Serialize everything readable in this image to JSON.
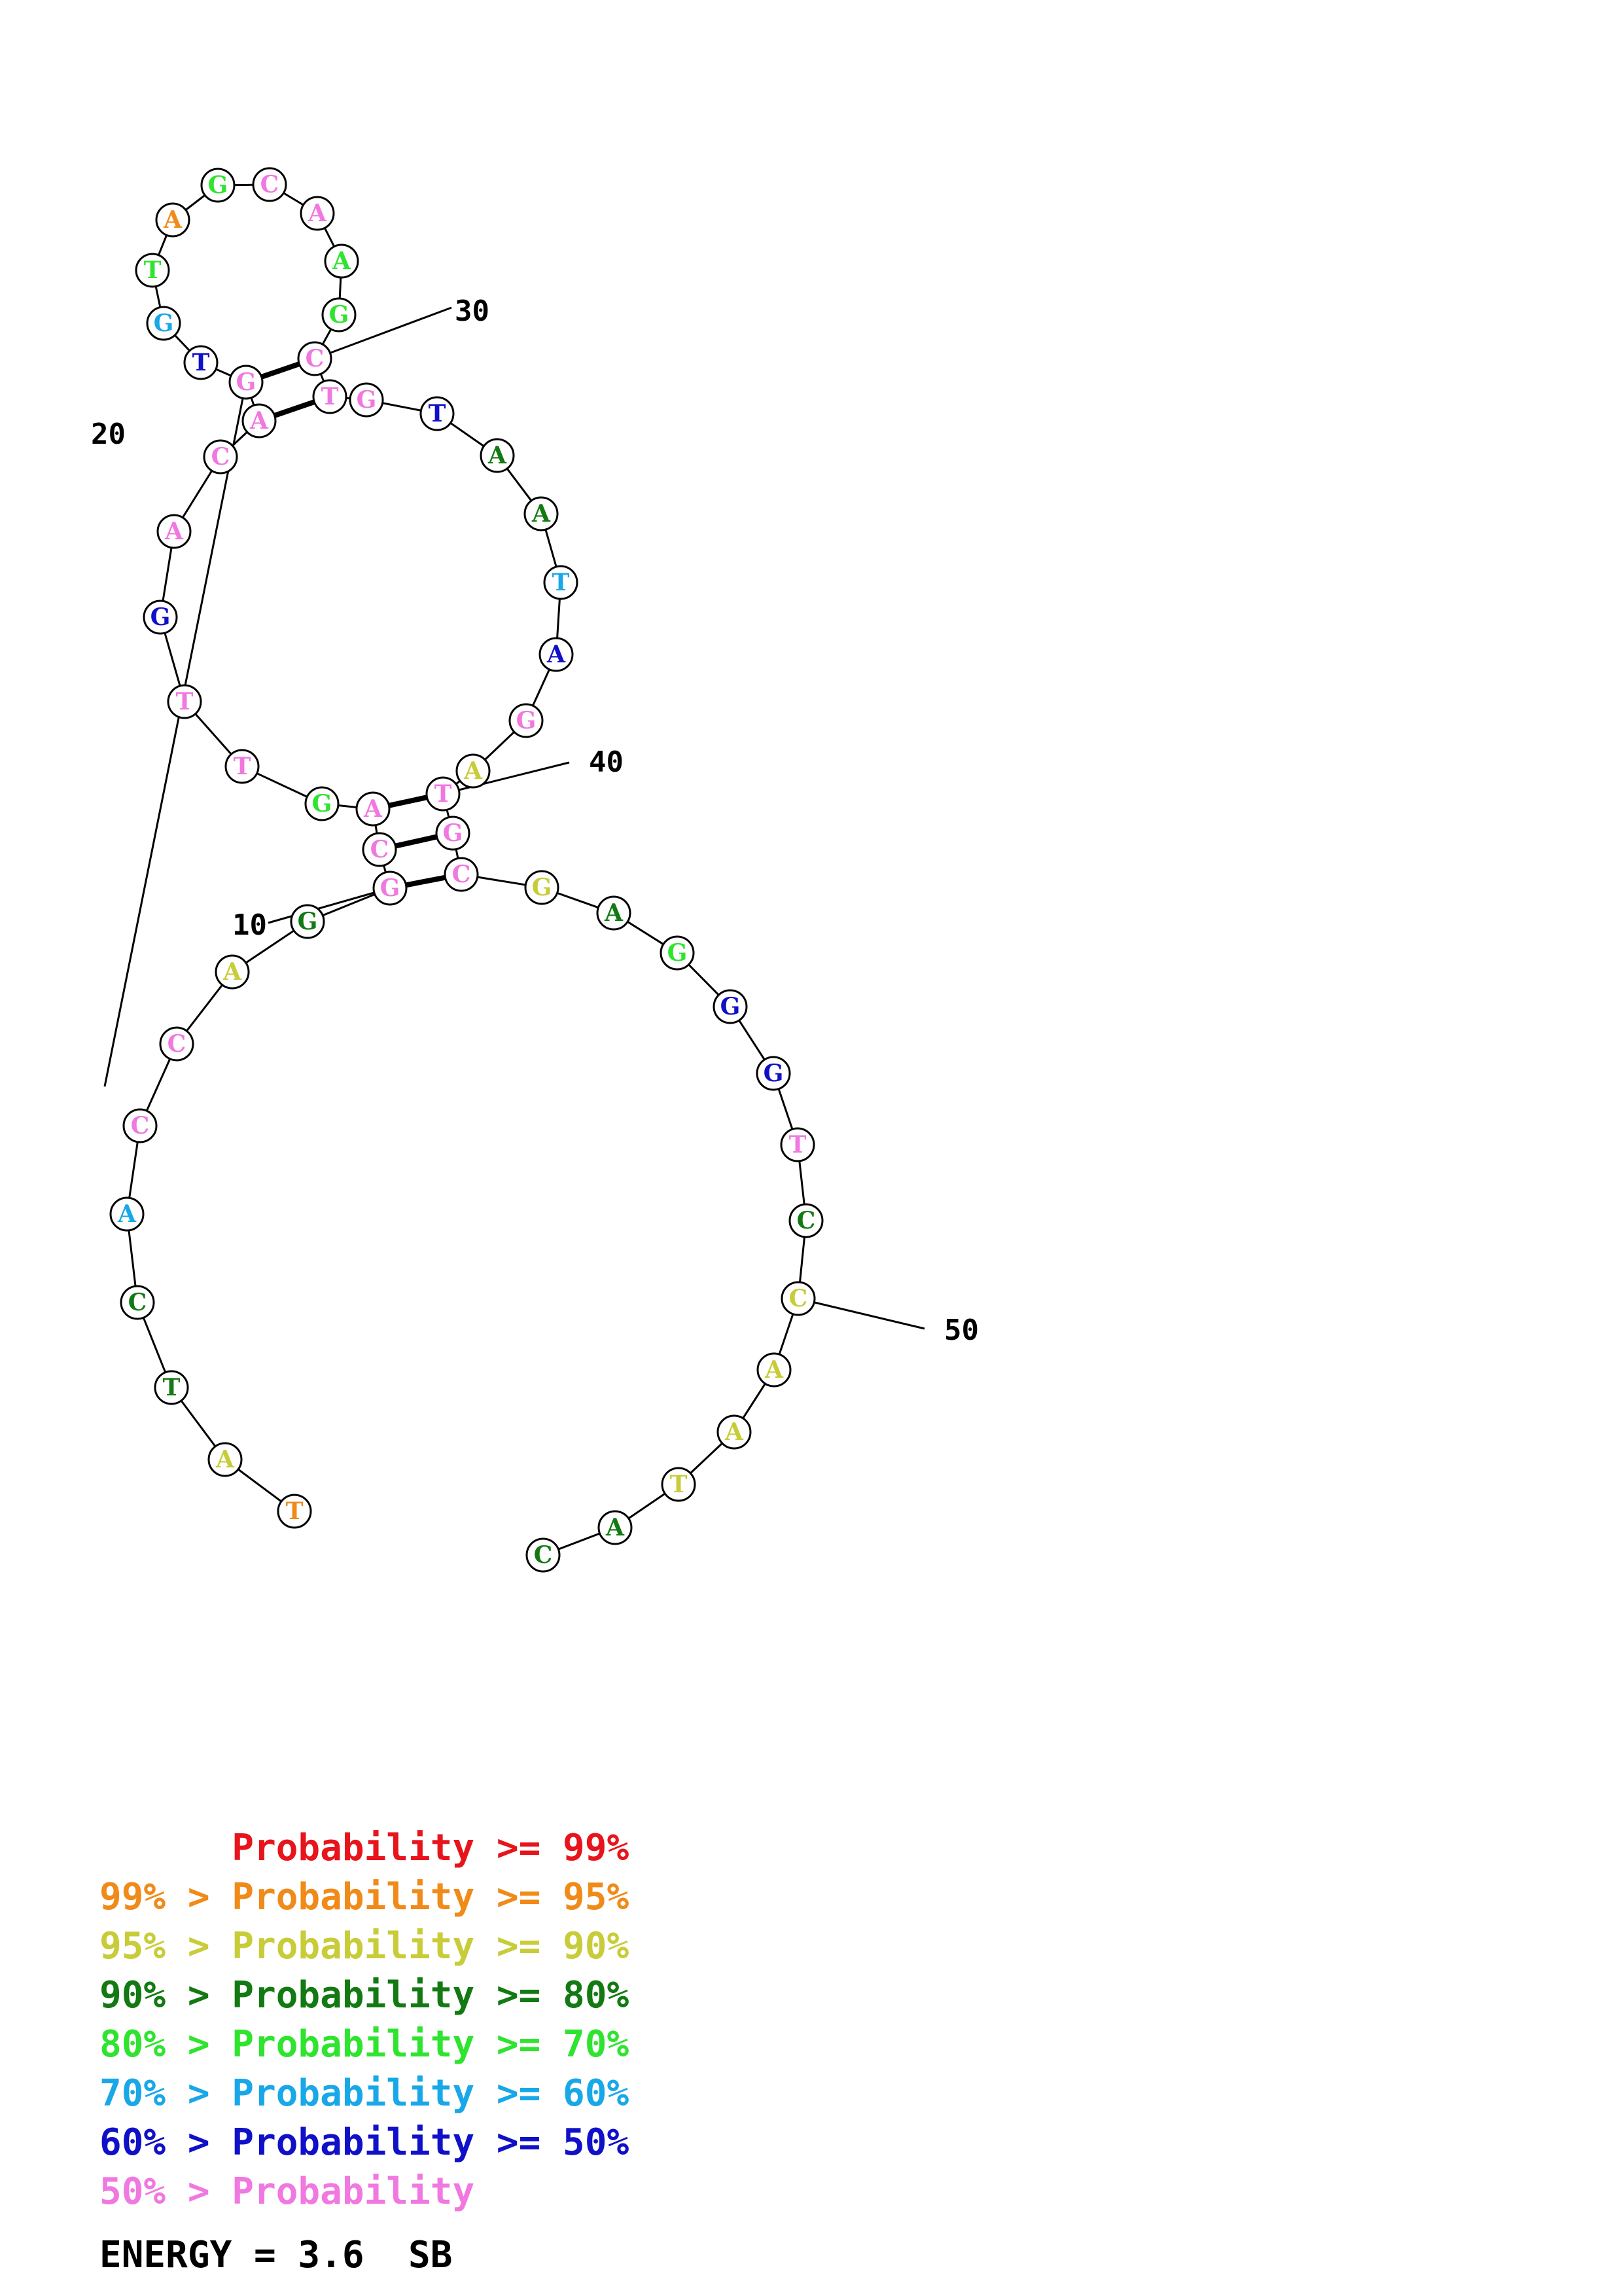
{
  "colors": {
    "p99": "#e8141c",
    "p95": "#f08a18",
    "p90": "#c8cc38",
    "p80": "#137a13",
    "p70": "#2fe42f",
    "p60": "#18a8e8",
    "p50": "#1010c8",
    "plow": "#f078e0"
  },
  "bases": [
    {
      "n": 1,
      "b": "T",
      "c": "p95"
    },
    {
      "n": 2,
      "b": "A",
      "c": "p90"
    },
    {
      "n": 3,
      "b": "T",
      "c": "p80"
    },
    {
      "n": 4,
      "b": "C",
      "c": "p80"
    },
    {
      "n": 5,
      "b": "A",
      "c": "p60"
    },
    {
      "n": 6,
      "b": "C",
      "c": "plow"
    },
    {
      "n": 7,
      "b": "C",
      "c": "plow"
    },
    {
      "n": 8,
      "b": "A",
      "c": "p90"
    },
    {
      "n": 9,
      "b": "G",
      "c": "p80"
    },
    {
      "n": 10,
      "b": "G",
      "c": "plow"
    },
    {
      "n": 11,
      "b": "C",
      "c": "plow"
    },
    {
      "n": 12,
      "b": "A",
      "c": "plow"
    },
    {
      "n": 13,
      "b": "G",
      "c": "p70"
    },
    {
      "n": 14,
      "b": "T",
      "c": "plow"
    },
    {
      "n": 15,
      "b": "T",
      "c": "plow"
    },
    {
      "n": 16,
      "b": "G",
      "c": "p50"
    },
    {
      "n": 17,
      "b": "A",
      "c": "plow"
    },
    {
      "n": 18,
      "b": "C",
      "c": "plow"
    },
    {
      "n": 19,
      "b": "A",
      "c": "plow"
    },
    {
      "n": 20,
      "b": "G",
      "c": "plow"
    },
    {
      "n": 21,
      "b": "T",
      "c": "p50"
    },
    {
      "n": 22,
      "b": "G",
      "c": "p60"
    },
    {
      "n": 23,
      "b": "T",
      "c": "p70"
    },
    {
      "n": 24,
      "b": "A",
      "c": "p95"
    },
    {
      "n": 25,
      "b": "G",
      "c": "p70"
    },
    {
      "n": 26,
      "b": "C",
      "c": "plow"
    },
    {
      "n": 27,
      "b": "A",
      "c": "plow"
    },
    {
      "n": 28,
      "b": "A",
      "c": "p70"
    },
    {
      "n": 29,
      "b": "G",
      "c": "p70"
    },
    {
      "n": 30,
      "b": "C",
      "c": "plow"
    },
    {
      "n": 31,
      "b": "T",
      "c": "plow"
    },
    {
      "n": 32,
      "b": "G",
      "c": "plow"
    },
    {
      "n": 33,
      "b": "T",
      "c": "p50"
    },
    {
      "n": 34,
      "b": "A",
      "c": "p80"
    },
    {
      "n": 35,
      "b": "A",
      "c": "p80"
    },
    {
      "n": 36,
      "b": "T",
      "c": "p60"
    },
    {
      "n": 37,
      "b": "A",
      "c": "p50"
    },
    {
      "n": 38,
      "b": "G",
      "c": "plow"
    },
    {
      "n": 39,
      "b": "A",
      "c": "p90"
    },
    {
      "n": 40,
      "b": "T",
      "c": "plow"
    },
    {
      "n": 41,
      "b": "G",
      "c": "plow"
    },
    {
      "n": 42,
      "b": "C",
      "c": "plow"
    },
    {
      "n": 43,
      "b": "G",
      "c": "p90"
    },
    {
      "n": 44,
      "b": "A",
      "c": "p80"
    },
    {
      "n": 45,
      "b": "G",
      "c": "p70"
    },
    {
      "n": 46,
      "b": "G",
      "c": "p50"
    },
    {
      "n": 47,
      "b": "G",
      "c": "p50"
    },
    {
      "n": 48,
      "b": "T",
      "c": "plow"
    },
    {
      "n": 49,
      "b": "C",
      "c": "p80"
    },
    {
      "n": 50,
      "b": "C",
      "c": "p90"
    },
    {
      "n": 51,
      "b": "A",
      "c": "p90"
    },
    {
      "n": 52,
      "b": "A",
      "c": "p90"
    },
    {
      "n": 53,
      "b": "T",
      "c": "p90"
    },
    {
      "n": 54,
      "b": "A",
      "c": "p80"
    },
    {
      "n": 55,
      "b": "C",
      "c": "p80"
    }
  ],
  "pairs": [
    [
      10,
      42
    ],
    [
      11,
      41
    ],
    [
      12,
      40
    ],
    [
      19,
      31
    ],
    [
      20,
      30
    ]
  ],
  "position_labels": [
    {
      "n": 10,
      "text": "10"
    },
    {
      "n": 20,
      "text": "20"
    },
    {
      "n": 30,
      "text": "30"
    },
    {
      "n": 40,
      "text": "40"
    },
    {
      "n": 50,
      "text": "50"
    }
  ],
  "legend": [
    {
      "text": "      Probability >= 99%",
      "c": "p99"
    },
    {
      "text": "99% > Probability >= 95%",
      "c": "p95"
    },
    {
      "text": "95% > Probability >= 90%",
      "c": "p90"
    },
    {
      "text": "90% > Probability >= 80%",
      "c": "p80"
    },
    {
      "text": "80% > Probability >= 70%",
      "c": "p70"
    },
    {
      "text": "70% > Probability >= 60%",
      "c": "p60"
    },
    {
      "text": "60% > Probability >= 50%",
      "c": "p50"
    },
    {
      "text": "50% > Probability",
      "c": "plow"
    }
  ],
  "energy": {
    "text": "ENERGY = 3.6  SB"
  }
}
